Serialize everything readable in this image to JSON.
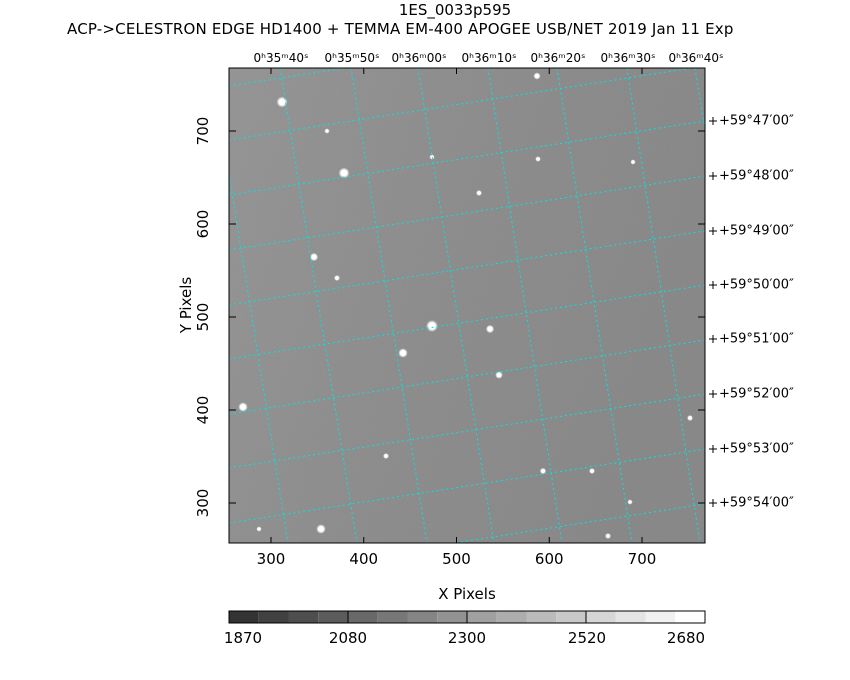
{
  "header": {
    "title": "1ES_0033p595",
    "subtitle": "ACP->CELESTRON EDGE HD1400 + TEMMA EM-400 APOGEE USB/NET   2019 Jan 11    Exp"
  },
  "chart_data": {
    "type": "heatmap",
    "title": "1ES_0033p595",
    "xlabel": "X Pixels",
    "ylabel": "Y Pixels",
    "xlim": [
      255,
      768
    ],
    "ylim": [
      258,
      770
    ],
    "x_ticks": [
      "300",
      "400",
      "500",
      "600",
      "700"
    ],
    "y_ticks": [
      "300",
      "400",
      "500",
      "600",
      "700"
    ],
    "ra_ticks": [
      "0ʰ35ᵐ40ˢ",
      "0ʰ35ᵐ50ˢ",
      "0ʰ36ᵐ00ˢ",
      "0ʰ36ᵐ10ˢ",
      "0ʰ36ᵐ20ˢ",
      "0ʰ36ᵐ30ˢ",
      "0ʰ36ᵐ40ˢ"
    ],
    "dec_ticks": [
      "+59°47′00″",
      "+59°48′00″",
      "+59°49′00″",
      "+59°50′00″",
      "+59°51′00″",
      "+59°52′00″",
      "+59°53′00″",
      "+59°54′00″"
    ],
    "grid": true,
    "grid_color": "#00e5e5",
    "colormap": "gray",
    "colorbar": {
      "range": [
        1870,
        2720
      ],
      "levels": 16,
      "tick_labels": [
        "1870",
        "2080",
        "2300",
        "2520",
        "2680"
      ],
      "placement": "bottom"
    }
  }
}
